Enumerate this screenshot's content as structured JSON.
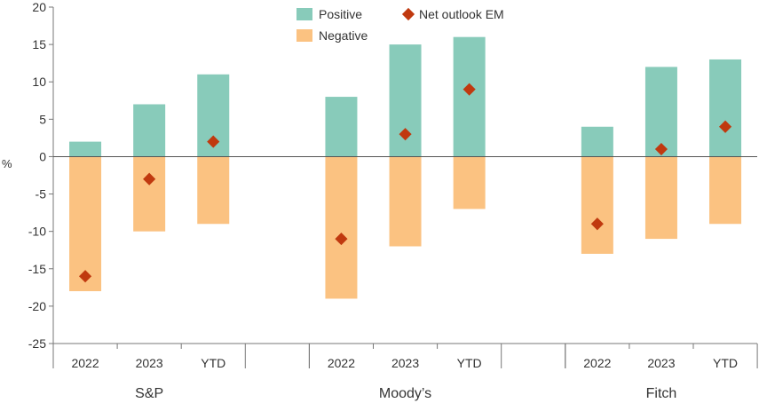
{
  "chart_data": {
    "type": "bar",
    "ylabel": "%",
    "ylim": [
      -25,
      20
    ],
    "yticks": [
      20,
      15,
      10,
      5,
      0,
      -5,
      -10,
      -15,
      -20,
      -25
    ],
    "groups": [
      {
        "name": "S&P",
        "categories": [
          "2022",
          "2023",
          "YTD"
        ],
        "positive": [
          2,
          7,
          11
        ],
        "negative": [
          -18,
          -10,
          -9
        ],
        "net": [
          -16,
          -3,
          2
        ]
      },
      {
        "name": "Moody’s",
        "categories": [
          "2022",
          "2023",
          "YTD"
        ],
        "positive": [
          8,
          15,
          16
        ],
        "negative": [
          -19,
          -12,
          -7
        ],
        "net": [
          -11,
          3,
          9
        ]
      },
      {
        "name": "Fitch",
        "categories": [
          "2022",
          "2023",
          "YTD"
        ],
        "positive": [
          4,
          12,
          13
        ],
        "negative": [
          -13,
          -11,
          -9
        ],
        "net": [
          -9,
          1,
          4
        ]
      }
    ],
    "legend": {
      "positive": "Positive",
      "negative": "Negative",
      "net": "Net outlook EM",
      "placement": "top-center"
    },
    "colors": {
      "positive": "#88cbba",
      "negative": "#fbc281",
      "net": "#c0390f",
      "axis": "#777777"
    }
  }
}
